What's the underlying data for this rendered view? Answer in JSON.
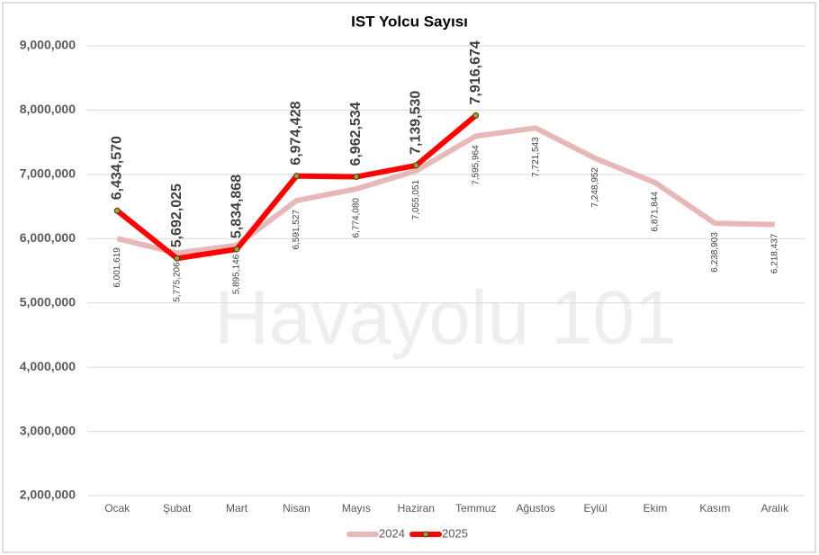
{
  "chart_data": {
    "type": "line",
    "title": "IST Yolcu Sayısı",
    "watermark": "Havayolu 101",
    "categories": [
      "Ocak",
      "Şubat",
      "Mart",
      "Nisan",
      "Mayıs",
      "Haziran",
      "Temmuz",
      "Ağustos",
      "Eylül",
      "Ekim",
      "Kasım",
      "Aralık"
    ],
    "series": [
      {
        "name": "2024",
        "color": "#e6b9b8",
        "values": [
          6001619,
          5775206,
          5895146,
          6591527,
          6774080,
          7055051,
          7595964,
          7721543,
          7248952,
          6871844,
          6238903,
          6218437
        ],
        "value_labels": [
          "6,001,619",
          "5,775,206",
          "5,895,146",
          "6,591,527",
          "6,774,080",
          "7,055,051",
          "7,595,964",
          "7,721,543",
          "7,248,952",
          "6,871,844",
          "6,238,903",
          "6,218,437"
        ]
      },
      {
        "name": "2025",
        "color": "#ff0000",
        "values": [
          6434570,
          5692025,
          5834868,
          6974428,
          6962534,
          7139530,
          7916674,
          null,
          null,
          null,
          null,
          null
        ],
        "value_labels": [
          "6,434,570",
          "5,692,025",
          "5,834,868",
          "6,974,428",
          "6,962,534",
          "7,139,530",
          "7,916,674",
          null,
          null,
          null,
          null,
          null
        ]
      }
    ],
    "ylim": [
      2000000,
      9000000
    ],
    "yticks": [
      {
        "value": 2000000,
        "label": "2,000,000"
      },
      {
        "value": 3000000,
        "label": "3,000,000"
      },
      {
        "value": 4000000,
        "label": "4,000,000"
      },
      {
        "value": 5000000,
        "label": "5,000,000"
      },
      {
        "value": 6000000,
        "label": "6,000,000"
      },
      {
        "value": 7000000,
        "label": "7,000,000"
      },
      {
        "value": 8000000,
        "label": "8,000,000"
      },
      {
        "value": 9000000,
        "label": "9,000,000"
      }
    ],
    "grid": true,
    "legend": "bottom"
  }
}
